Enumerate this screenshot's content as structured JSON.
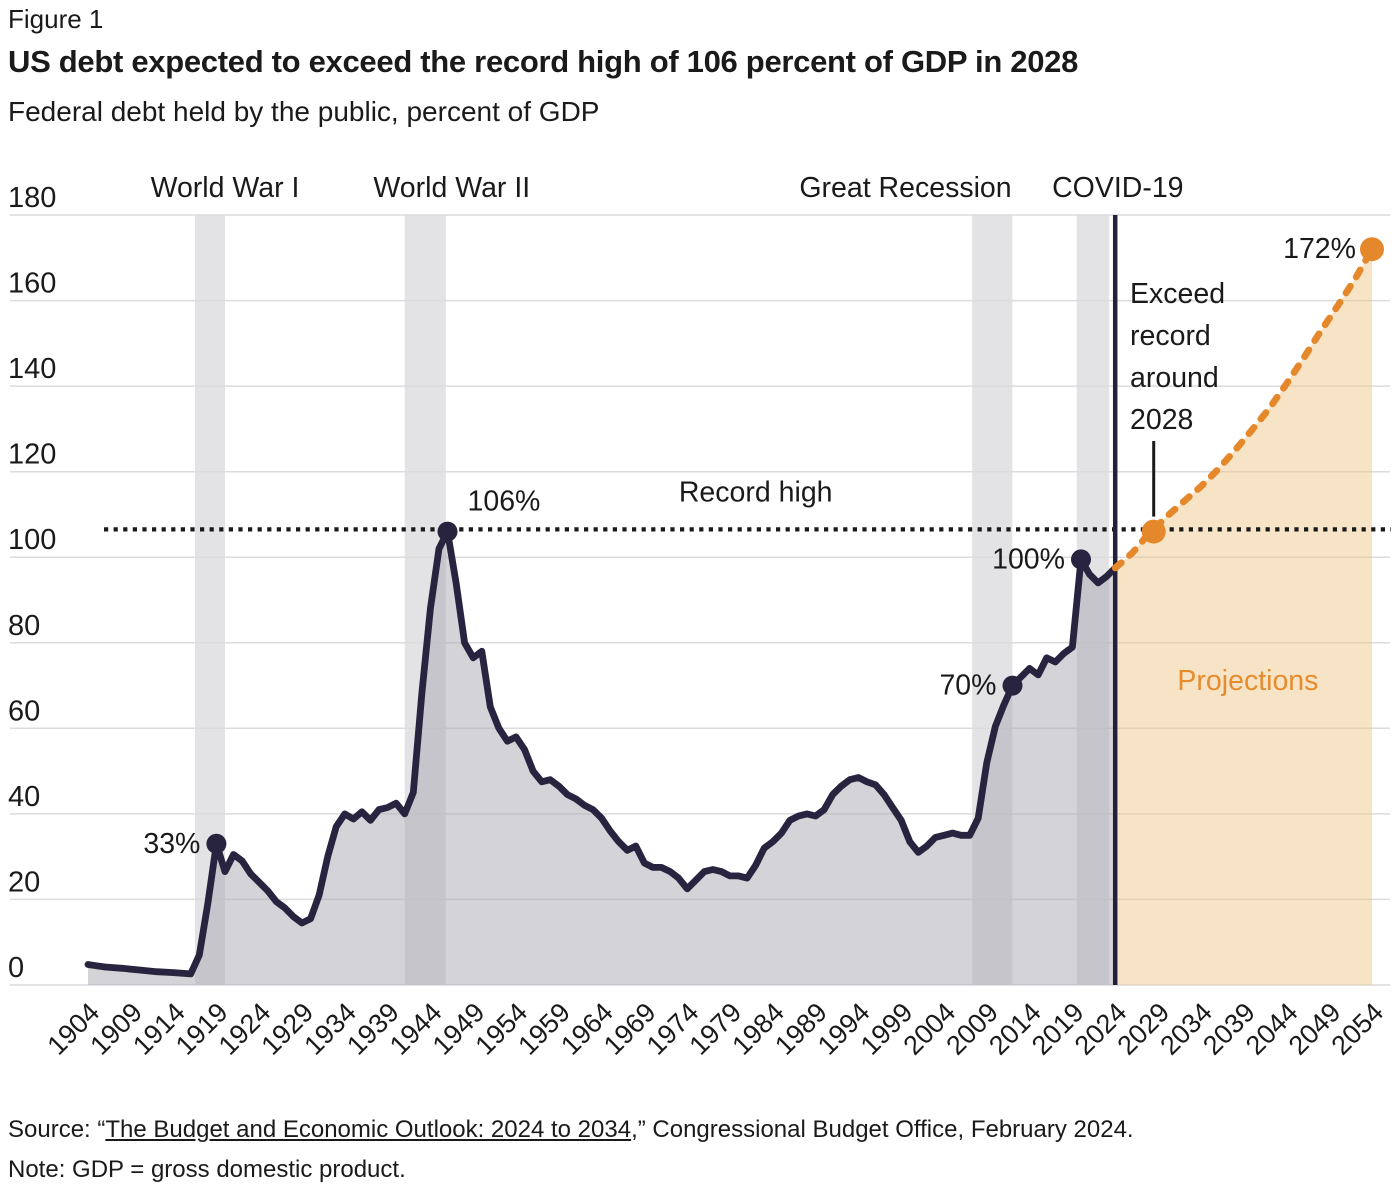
{
  "figure_label": "Figure 1",
  "title": "US debt expected to exceed the record high of 106 percent of GDP in 2028",
  "subtitle": "Federal debt held by the public, percent of GDP",
  "footer": {
    "source_prefix": "Source: “",
    "source_link": "The Budget and Economic Outlook: 2024 to 2034",
    "source_suffix": ",” Congressional Budget Office, February 2024.",
    "note": "Note: GDP = gross domestic product."
  },
  "colors": {
    "line_navy": "#282440",
    "divider_navy": "#23203a",
    "projection_orange": "#e5882c",
    "projection_text_orange": "#e78c2e",
    "historical_fill": "rgba(167,167,177,0.5)",
    "projection_fill": "rgba(237,195,128,0.45)",
    "event_band": "#e3e3e5",
    "gridline": "#dcdcdd",
    "text": "#1a1a1a"
  },
  "chart_data": {
    "type": "area",
    "title": "US debt expected to exceed the record high of 106 percent of GDP in 2028",
    "xlabel": "",
    "ylabel": "Federal debt held by the public, percent of GDP",
    "xlim": [
      1904,
      2054
    ],
    "ylim": [
      0,
      180
    ],
    "grid": "horizontal",
    "y_ticks": [
      0,
      20,
      40,
      60,
      80,
      100,
      120,
      140,
      160,
      180
    ],
    "x_ticks": [
      1904,
      1909,
      1914,
      1919,
      1924,
      1929,
      1934,
      1939,
      1944,
      1949,
      1954,
      1959,
      1964,
      1969,
      1974,
      1979,
      1984,
      1989,
      1994,
      1999,
      2004,
      2009,
      2014,
      2019,
      2024,
      2029,
      2034,
      2039,
      2044,
      2049,
      2054
    ],
    "series": [
      {
        "name": "Historical debt held by the public, percent of GDP",
        "style": "solid",
        "points": [
          [
            1904,
            4.8
          ],
          [
            1905,
            4.5
          ],
          [
            1906,
            4.2
          ],
          [
            1908,
            3.9
          ],
          [
            1910,
            3.5
          ],
          [
            1912,
            3.1
          ],
          [
            1914,
            2.9
          ],
          [
            1916,
            2.6
          ],
          [
            1917,
            7
          ],
          [
            1918,
            19
          ],
          [
            1919,
            33
          ],
          [
            1920,
            26.5
          ],
          [
            1921,
            30.5
          ],
          [
            1922,
            29
          ],
          [
            1923,
            26
          ],
          [
            1924,
            24
          ],
          [
            1925,
            22
          ],
          [
            1926,
            19.5
          ],
          [
            1927,
            18
          ],
          [
            1928,
            16
          ],
          [
            1929,
            14.5
          ],
          [
            1930,
            15.5
          ],
          [
            1931,
            21
          ],
          [
            1932,
            30
          ],
          [
            1933,
            37
          ],
          [
            1934,
            40
          ],
          [
            1935,
            38.8
          ],
          [
            1936,
            40.5
          ],
          [
            1937,
            38.5
          ],
          [
            1938,
            41
          ],
          [
            1939,
            41.5
          ],
          [
            1940,
            42.5
          ],
          [
            1941,
            40
          ],
          [
            1942,
            45
          ],
          [
            1943,
            68
          ],
          [
            1944,
            88
          ],
          [
            1945,
            102
          ],
          [
            1946,
            106
          ],
          [
            1947,
            94
          ],
          [
            1948,
            80
          ],
          [
            1949,
            76.5
          ],
          [
            1950,
            78
          ],
          [
            1951,
            65
          ],
          [
            1952,
            60
          ],
          [
            1953,
            57
          ],
          [
            1954,
            58
          ],
          [
            1955,
            55
          ],
          [
            1956,
            50
          ],
          [
            1957,
            47.5
          ],
          [
            1958,
            48
          ],
          [
            1959,
            46.5
          ],
          [
            1960,
            44.5
          ],
          [
            1961,
            43.5
          ],
          [
            1962,
            42
          ],
          [
            1963,
            41
          ],
          [
            1964,
            39
          ],
          [
            1965,
            36
          ],
          [
            1966,
            33.5
          ],
          [
            1967,
            31.5
          ],
          [
            1968,
            32.5
          ],
          [
            1969,
            28.5
          ],
          [
            1970,
            27.5
          ],
          [
            1971,
            27.5
          ],
          [
            1972,
            26.5
          ],
          [
            1973,
            25
          ],
          [
            1974,
            22.5
          ],
          [
            1975,
            24.5
          ],
          [
            1976,
            26.5
          ],
          [
            1977,
            27
          ],
          [
            1978,
            26.5
          ],
          [
            1979,
            25.5
          ],
          [
            1980,
            25.5
          ],
          [
            1981,
            25
          ],
          [
            1982,
            28
          ],
          [
            1983,
            32
          ],
          [
            1984,
            33.5
          ],
          [
            1985,
            35.5
          ],
          [
            1986,
            38.5
          ],
          [
            1987,
            39.5
          ],
          [
            1988,
            40
          ],
          [
            1989,
            39.5
          ],
          [
            1990,
            41
          ],
          [
            1991,
            44.5
          ],
          [
            1992,
            46.5
          ],
          [
            1993,
            48
          ],
          [
            1994,
            48.5
          ],
          [
            1995,
            47.5
          ],
          [
            1996,
            46.8
          ],
          [
            1997,
            44.5
          ],
          [
            1998,
            41.5
          ],
          [
            1999,
            38.5
          ],
          [
            2000,
            33.5
          ],
          [
            2001,
            31
          ],
          [
            2002,
            32.5
          ],
          [
            2003,
            34.5
          ],
          [
            2004,
            35
          ],
          [
            2005,
            35.5
          ],
          [
            2006,
            35
          ],
          [
            2007,
            35
          ],
          [
            2008,
            39
          ],
          [
            2009,
            52
          ],
          [
            2010,
            60.5
          ],
          [
            2011,
            65.5
          ],
          [
            2012,
            70
          ],
          [
            2013,
            72
          ],
          [
            2014,
            74
          ],
          [
            2015,
            72.5
          ],
          [
            2016,
            76.5
          ],
          [
            2017,
            75.5
          ],
          [
            2018,
            77.5
          ],
          [
            2019,
            79
          ],
          [
            2020,
            99.5
          ],
          [
            2021,
            96
          ],
          [
            2022,
            94
          ],
          [
            2023,
            95.5
          ],
          [
            2024,
            97.5
          ]
        ]
      },
      {
        "name": "Projections",
        "style": "dashed",
        "points": [
          [
            2024,
            97.5
          ],
          [
            2025,
            99.2
          ],
          [
            2026,
            101
          ],
          [
            2027,
            103.3
          ],
          [
            2028,
            105.8
          ],
          [
            2029,
            107.5
          ],
          [
            2030,
            109.5
          ],
          [
            2032,
            113
          ],
          [
            2034,
            116.5
          ],
          [
            2036,
            120.5
          ],
          [
            2038,
            125
          ],
          [
            2040,
            129.8
          ],
          [
            2042,
            134.8
          ],
          [
            2044,
            140.5
          ],
          [
            2046,
            146.5
          ],
          [
            2048,
            152.8
          ],
          [
            2050,
            158.8
          ],
          [
            2052,
            165
          ],
          [
            2054,
            172
          ]
        ]
      }
    ],
    "record_high_line": {
      "value": 106.5,
      "label": "Record high",
      "label_center_year": 1982,
      "label_value": 113
    },
    "divider_year": 2024,
    "event_bands": [
      {
        "label": "World War I",
        "start": 1916.5,
        "end": 1920,
        "label_center_year": 1920
      },
      {
        "label": "World War II",
        "start": 1941,
        "end": 1945.8,
        "label_center_year": 1946.5
      },
      {
        "label": "Great Recession",
        "start": 2007.3,
        "end": 2012,
        "label_center_year": 1999.5
      },
      {
        "label": "COVID-19",
        "start": 2019.5,
        "end": 2023.3,
        "label_center_year": 2024.3
      }
    ],
    "point_labels": [
      {
        "label": "33%",
        "year": 1919,
        "value": 33,
        "series": "historical",
        "side": "left",
        "color": "navy"
      },
      {
        "label": "106%",
        "year": 1946,
        "value": 106,
        "series": "historical",
        "side": "right",
        "color": "navy"
      },
      {
        "label": "70%",
        "year": 2012,
        "value": 70,
        "series": "historical",
        "side": "left",
        "color": "navy"
      },
      {
        "label": "100%",
        "year": 2020,
        "value": 99.5,
        "series": "historical",
        "side": "left",
        "color": "navy"
      },
      {
        "label": "172%",
        "year": 2054,
        "value": 172,
        "series": "projection",
        "side": "left",
        "color": "orange"
      }
    ],
    "exceed_annotation": {
      "lines": [
        "Exceed",
        "record",
        "around",
        "2028"
      ],
      "year": 2028.5,
      "value": 106
    },
    "projections_label": {
      "text": "Projections",
      "center_year": 2039.5,
      "value": 69
    }
  }
}
